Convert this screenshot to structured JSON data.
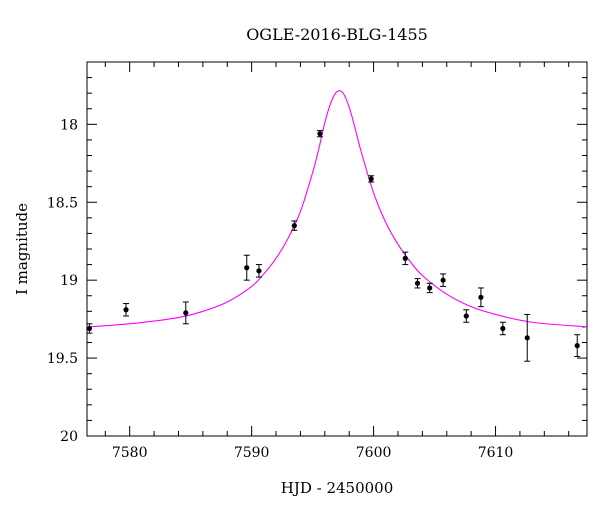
{
  "chart_data": {
    "type": "scatter",
    "title": "OGLE-2016-BLG-1455",
    "xlabel": "HJD - 2450000",
    "ylabel": "I magnitude",
    "xlim": [
      7576.5,
      7617.5
    ],
    "ylim": [
      20.0,
      17.6
    ],
    "y_inverted": true,
    "x_ticks": [
      7580,
      7590,
      7600,
      7610
    ],
    "x_tick_labels": [
      "7580",
      "7590",
      "7600",
      "7610"
    ],
    "y_ticks": [
      18,
      18.5,
      19,
      19.5,
      20
    ],
    "y_tick_labels": [
      "18",
      "18.5",
      "19",
      "19.5",
      "20"
    ],
    "x_minor_step": 2,
    "y_minor_step": 0.1,
    "grid": false,
    "series": [
      {
        "type": "errorbar",
        "color": "#000000",
        "points": [
          {
            "x": 7576.7,
            "y": 19.31,
            "err": 0.03
          },
          {
            "x": 7579.7,
            "y": 19.19,
            "err": 0.04
          },
          {
            "x": 7584.6,
            "y": 19.21,
            "err": 0.07
          },
          {
            "x": 7589.6,
            "y": 18.92,
            "err": 0.08
          },
          {
            "x": 7590.6,
            "y": 18.94,
            "err": 0.04
          },
          {
            "x": 7593.5,
            "y": 18.65,
            "err": 0.03
          },
          {
            "x": 7595.6,
            "y": 18.06,
            "err": 0.02
          },
          {
            "x": 7599.8,
            "y": 18.35,
            "err": 0.02
          },
          {
            "x": 7602.6,
            "y": 18.86,
            "err": 0.04
          },
          {
            "x": 7603.6,
            "y": 19.02,
            "err": 0.03
          },
          {
            "x": 7604.6,
            "y": 19.05,
            "err": 0.03
          },
          {
            "x": 7605.7,
            "y": 19.0,
            "err": 0.04
          },
          {
            "x": 7607.6,
            "y": 19.23,
            "err": 0.04
          },
          {
            "x": 7608.8,
            "y": 19.11,
            "err": 0.06
          },
          {
            "x": 7610.6,
            "y": 19.31,
            "err": 0.04
          },
          {
            "x": 7612.6,
            "y": 19.37,
            "err": 0.15
          },
          {
            "x": 7616.7,
            "y": 19.42,
            "err": 0.07
          }
        ]
      },
      {
        "type": "line",
        "color": "#ff00ff",
        "points": [
          {
            "x": 7576.5,
            "y": 19.3
          },
          {
            "x": 7580,
            "y": 19.28
          },
          {
            "x": 7584,
            "y": 19.24
          },
          {
            "x": 7586,
            "y": 19.2
          },
          {
            "x": 7588,
            "y": 19.14
          },
          {
            "x": 7590,
            "y": 19.04
          },
          {
            "x": 7591,
            "y": 18.96
          },
          {
            "x": 7592,
            "y": 18.86
          },
          {
            "x": 7593,
            "y": 18.73
          },
          {
            "x": 7594,
            "y": 18.56
          },
          {
            "x": 7595,
            "y": 18.31
          },
          {
            "x": 7595.5,
            "y": 18.16
          },
          {
            "x": 7596,
            "y": 17.99
          },
          {
            "x": 7596.5,
            "y": 17.86
          },
          {
            "x": 7597,
            "y": 17.79
          },
          {
            "x": 7597.5,
            "y": 17.8
          },
          {
            "x": 7598,
            "y": 17.89
          },
          {
            "x": 7598.5,
            "y": 18.03
          },
          {
            "x": 7599,
            "y": 18.18
          },
          {
            "x": 7600,
            "y": 18.44
          },
          {
            "x": 7601,
            "y": 18.63
          },
          {
            "x": 7602,
            "y": 18.77
          },
          {
            "x": 7603,
            "y": 18.88
          },
          {
            "x": 7604,
            "y": 18.97
          },
          {
            "x": 7606,
            "y": 19.09
          },
          {
            "x": 7608,
            "y": 19.17
          },
          {
            "x": 7610,
            "y": 19.22
          },
          {
            "x": 7613,
            "y": 19.27
          },
          {
            "x": 7617.5,
            "y": 19.3
          }
        ]
      }
    ]
  }
}
